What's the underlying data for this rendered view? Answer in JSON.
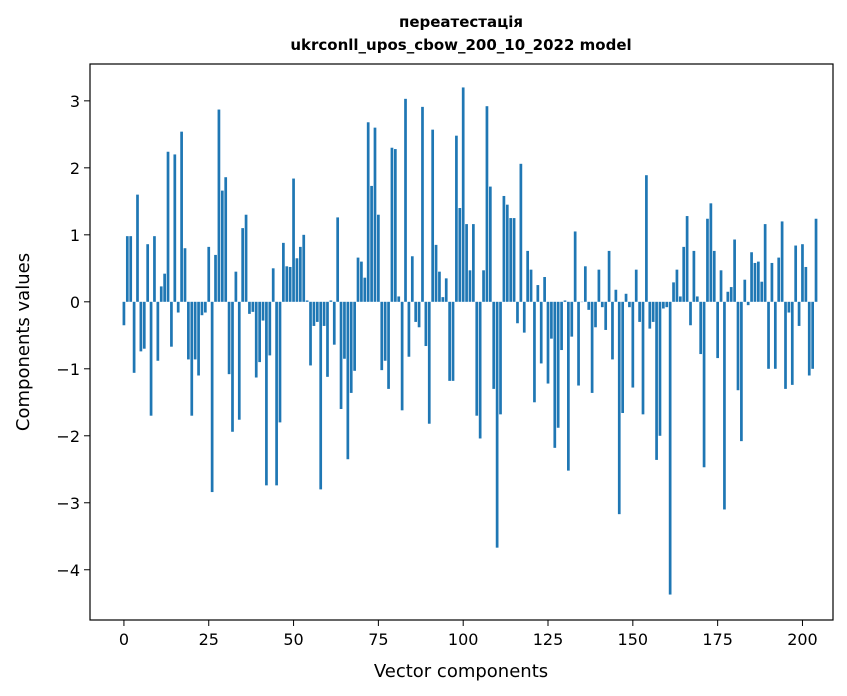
{
  "chart_data": {
    "type": "bar",
    "title_line1": "переатестація",
    "title_line2": "ukrconll_upos_cbow_200_10_2022 model",
    "xlabel": "Vector components",
    "ylabel": "Components values",
    "xlim": [
      -10,
      209
    ],
    "ylim": [
      -4.75,
      3.55
    ],
    "xticks": [
      0,
      25,
      50,
      75,
      100,
      125,
      150,
      175,
      200
    ],
    "xtick_labels": [
      "0",
      "25",
      "50",
      "75",
      "100",
      "125",
      "150",
      "175",
      "200"
    ],
    "yticks": [
      -4,
      -3,
      -2,
      -1,
      0,
      1,
      2,
      3
    ],
    "ytick_labels": [
      "−4",
      "−3",
      "−2",
      "−1",
      "0",
      "1",
      "2",
      "3"
    ],
    "bar_color": "#1f77b4",
    "x_start": 0,
    "values": [
      -0.35,
      0.98,
      0.98,
      -1.06,
      1.6,
      -0.74,
      -0.7,
      0.86,
      -1.7,
      0.98,
      -0.88,
      0.23,
      0.42,
      2.24,
      -0.67,
      2.2,
      -0.16,
      2.54,
      0.8,
      -0.86,
      -1.7,
      -0.86,
      -1.1,
      -0.2,
      -0.16,
      0.82,
      -2.84,
      0.7,
      2.87,
      1.66,
      1.86,
      -1.08,
      -1.94,
      0.45,
      -1.76,
      1.1,
      1.3,
      -0.18,
      -0.15,
      -1.13,
      -0.9,
      -0.28,
      -2.74,
      -0.8,
      0.5,
      -2.74,
      -1.8,
      0.88,
      0.53,
      0.52,
      1.84,
      0.65,
      0.82,
      1.0,
      0.02,
      -0.95,
      -0.36,
      -0.3,
      -2.8,
      -0.36,
      -1.12,
      0.02,
      -0.64,
      1.26,
      -1.6,
      -0.85,
      -2.35,
      -1.36,
      -1.03,
      0.66,
      0.6,
      0.36,
      2.68,
      1.73,
      2.6,
      1.3,
      -1.02,
      -0.88,
      -1.3,
      2.3,
      2.28,
      0.08,
      -1.62,
      3.03,
      -0.82,
      0.68,
      -0.3,
      -0.38,
      2.91,
      -0.66,
      -1.82,
      2.57,
      0.85,
      0.45,
      0.07,
      0.35,
      -1.18,
      -1.18,
      2.48,
      1.4,
      3.2,
      1.16,
      0.47,
      1.16,
      -1.7,
      -2.04,
      0.47,
      2.92,
      1.72,
      -1.3,
      -3.67,
      -1.68,
      1.58,
      1.45,
      1.25,
      1.25,
      -0.32,
      2.06,
      -0.46,
      0.76,
      0.48,
      -1.5,
      0.25,
      -0.92,
      0.37,
      -1.22,
      -0.55,
      -2.18,
      -1.88,
      -0.72,
      0.02,
      -2.52,
      -0.52,
      1.05,
      -1.25,
      0.0,
      0.53,
      -0.12,
      -1.36,
      -0.38,
      0.48,
      -0.08,
      -0.42,
      0.76,
      -0.86,
      0.18,
      -3.17,
      -1.66,
      0.12,
      -0.08,
      -1.28,
      0.48,
      -0.3,
      -1.68,
      1.89,
      -0.4,
      -0.3,
      -2.36,
      -2.0,
      -0.1,
      -0.08,
      -4.37,
      0.29,
      0.48,
      0.08,
      0.82,
      1.28,
      -0.35,
      0.76,
      0.08,
      -0.78,
      -2.47,
      1.24,
      1.47,
      0.76,
      -0.84,
      0.47,
      -3.1,
      0.15,
      0.22,
      0.93,
      -1.32,
      -2.08,
      0.33,
      -0.05,
      0.74,
      0.58,
      0.6,
      0.3,
      1.16,
      -1.0,
      0.58,
      -1.0,
      0.66,
      1.2,
      -1.3,
      -0.16,
      -1.24,
      0.84,
      -0.36,
      0.86,
      0.52,
      -1.1,
      -1.0,
      1.24
    ]
  }
}
